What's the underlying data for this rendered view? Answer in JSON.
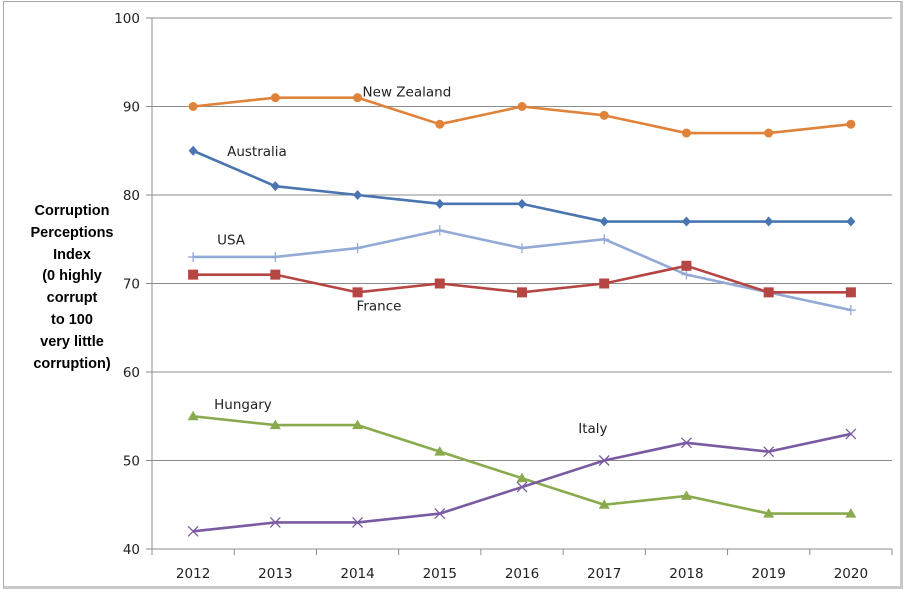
{
  "chart_data": {
    "type": "line",
    "title": "",
    "xlabel": "",
    "ylabel": "Corruption Perceptions Index (0 highly corrupt to 100 very little corruption)",
    "ylabel_lines": [
      "Corruption",
      "Perceptions",
      "Index",
      "(0 highly",
      "corrupt",
      "to 100",
      "very little",
      "corruption)"
    ],
    "ylim": [
      40,
      100
    ],
    "yticks": [
      40,
      50,
      60,
      70,
      80,
      90,
      100
    ],
    "grid": true,
    "legend": "inline-labels",
    "categories": [
      "2012",
      "2013",
      "2014",
      "2015",
      "2016",
      "2017",
      "2018",
      "2019",
      "2020"
    ],
    "series": [
      {
        "name": "New Zealand",
        "color": "#e0833a",
        "marker": "circle",
        "values": [
          90,
          91,
          91,
          88,
          90,
          89,
          87,
          87,
          88
        ]
      },
      {
        "name": "Australia",
        "color": "#4a75b0",
        "marker": "diamond",
        "values": [
          85,
          81,
          80,
          79,
          79,
          77,
          77,
          77,
          77
        ]
      },
      {
        "name": "USA",
        "color": "#93aad6",
        "marker": "plus",
        "values": [
          73,
          73,
          74,
          76,
          74,
          75,
          71,
          69,
          67
        ]
      },
      {
        "name": "France",
        "color": "#b54643",
        "marker": "square",
        "values": [
          71,
          71,
          69,
          70,
          69,
          70,
          72,
          69,
          69
        ]
      },
      {
        "name": "Hungary",
        "color": "#89aa4d",
        "marker": "triangle",
        "values": [
          55,
          54,
          54,
          51,
          48,
          45,
          46,
          44,
          44
        ]
      },
      {
        "name": "Italy",
        "color": "#7a5aa1",
        "marker": "x",
        "values": [
          42,
          43,
          43,
          44,
          47,
          50,
          52,
          51,
          53
        ]
      }
    ],
    "annotations": [
      {
        "text": "New Zealand",
        "series": "New Zealand",
        "near_year": "2014",
        "near_value": 91.7
      },
      {
        "text": "Australia",
        "series": "Australia",
        "near_year": "2012",
        "near_value": 85
      },
      {
        "text": "USA",
        "series": "USA",
        "near_year": "2012",
        "near_value": 75
      },
      {
        "text": "France",
        "series": "France",
        "near_year": "2014",
        "near_value": 67.5
      },
      {
        "text": "Hungary",
        "series": "Hungary",
        "near_year": "2012",
        "near_value": 56.4
      },
      {
        "text": "Italy",
        "series": "Italy",
        "near_year": "2017",
        "near_value": 53.7
      }
    ]
  }
}
